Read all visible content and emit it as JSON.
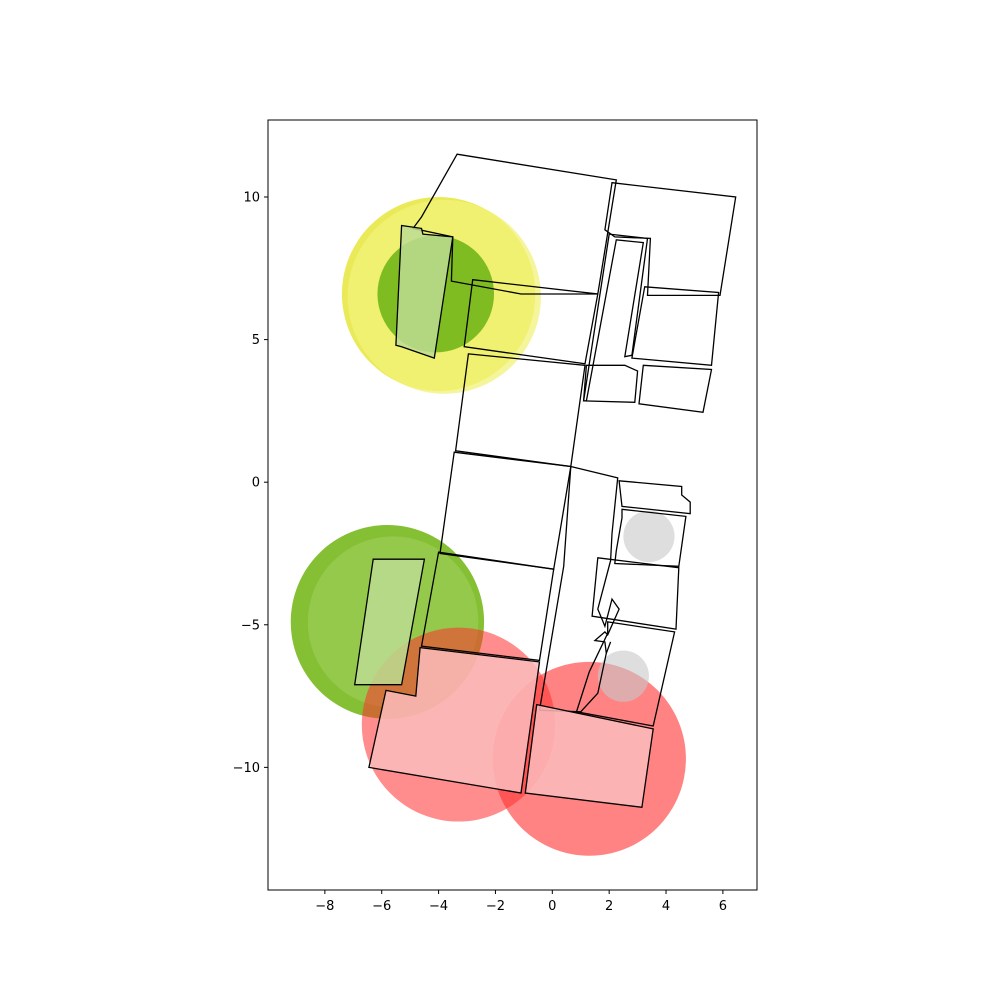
{
  "chart_data": {
    "type": "scatter",
    "title": "",
    "xlabel": "",
    "ylabel": "",
    "xlim": [
      -10.0,
      7.2
    ],
    "ylim": [
      -14.3,
      12.7
    ],
    "x_ticks": [
      -8,
      -6,
      -4,
      -2,
      0,
      2,
      4,
      6
    ],
    "y_ticks": [
      10,
      5,
      0,
      -5,
      -10
    ],
    "x_tick_labels": [
      "−8",
      "−6",
      "−4",
      "−2",
      "0",
      "2",
      "4",
      "6"
    ],
    "y_tick_labels": [
      "10",
      "5",
      "0",
      "−5",
      "−10"
    ],
    "grid": false,
    "legend": "none",
    "circles": [
      {
        "x": -4.0,
        "y": 6.6,
        "r": 3.4,
        "color": "#dede00",
        "opacity": 0.65
      },
      {
        "x": -3.8,
        "y": 6.5,
        "r": 3.4,
        "color": "#f2f27a",
        "opacity": 0.75
      },
      {
        "x": -4.1,
        "y": 6.6,
        "r": 2.05,
        "color": "#78b81e",
        "opacity": 0.95
      },
      {
        "x": -5.8,
        "y": -4.9,
        "r": 3.4,
        "color": "#78b81e",
        "opacity": 0.9
      },
      {
        "x": -5.6,
        "y": -4.9,
        "r": 3.0,
        "color": "#a8d468",
        "opacity": 0.45
      },
      {
        "x": -3.3,
        "y": -8.5,
        "r": 3.4,
        "color": "#ff3030",
        "opacity": 0.55
      },
      {
        "x": 1.3,
        "y": -9.7,
        "r": 3.4,
        "color": "#ff3030",
        "opacity": 0.6
      },
      {
        "x": 3.4,
        "y": -1.9,
        "r": 0.9,
        "color": "#c8c8c8",
        "opacity": 0.6
      },
      {
        "x": 2.5,
        "y": -6.8,
        "r": 0.9,
        "color": "#c8c8c8",
        "opacity": 0.6
      }
    ],
    "rooms": [
      {
        "fill": "none",
        "points": [
          [
            -3.35,
            11.5
          ],
          [
            2.25,
            10.6
          ],
          [
            1.6,
            6.6
          ],
          [
            -1.1,
            6.6
          ],
          [
            -3.55,
            7.05
          ],
          [
            -3.5,
            8.6
          ],
          [
            -4.9,
            8.9
          ],
          [
            -4.6,
            9.3
          ]
        ]
      },
      {
        "fill": "none",
        "points": [
          [
            2.1,
            10.5
          ],
          [
            6.45,
            10.0
          ],
          [
            5.9,
            6.55
          ],
          [
            3.35,
            6.55
          ],
          [
            3.45,
            8.55
          ],
          [
            2.2,
            8.6
          ],
          [
            1.85,
            8.85
          ]
        ]
      },
      {
        "fill": "#bcdc92",
        "points": [
          [
            -5.3,
            9.0
          ],
          [
            -4.6,
            8.9
          ],
          [
            -4.55,
            8.7
          ],
          [
            -3.5,
            8.6
          ],
          [
            -4.15,
            4.35
          ],
          [
            -5.3,
            4.75
          ],
          [
            -5.5,
            4.8
          ]
        ]
      },
      {
        "fill": "none",
        "points": [
          [
            -2.8,
            7.1
          ],
          [
            1.6,
            6.6
          ],
          [
            1.15,
            4.15
          ],
          [
            -3.1,
            4.75
          ]
        ]
      },
      {
        "fill": "none",
        "points": [
          [
            -2.95,
            4.5
          ],
          [
            1.15,
            4.1
          ],
          [
            0.65,
            0.55
          ],
          [
            -3.4,
            1.1
          ]
        ]
      },
      {
        "fill": "none",
        "points": [
          [
            2.0,
            8.7
          ],
          [
            3.35,
            8.55
          ],
          [
            2.8,
            4.45
          ],
          [
            2.55,
            4.4
          ],
          [
            3.2,
            8.4
          ],
          [
            2.25,
            8.5
          ],
          [
            1.2,
            2.85
          ],
          [
            1.1,
            2.85
          ],
          [
            2.0,
            8.7
          ]
        ]
      },
      {
        "fill": "none",
        "points": [
          [
            3.25,
            6.85
          ],
          [
            5.85,
            6.65
          ],
          [
            5.6,
            4.1
          ],
          [
            2.8,
            4.35
          ]
        ]
      },
      {
        "fill": "none",
        "points": [
          [
            3.2,
            4.1
          ],
          [
            5.6,
            3.95
          ],
          [
            5.3,
            2.45
          ],
          [
            3.05,
            2.75
          ]
        ]
      },
      {
        "fill": "none",
        "points": [
          [
            1.1,
            2.85
          ],
          [
            2.9,
            2.8
          ],
          [
            3.0,
            3.9
          ],
          [
            2.55,
            4.1
          ],
          [
            1.2,
            4.1
          ]
        ]
      },
      {
        "fill": "none",
        "points": [
          [
            -3.45,
            1.05
          ],
          [
            0.65,
            0.55
          ],
          [
            0.05,
            -3.05
          ],
          [
            -3.95,
            -2.5
          ]
        ]
      },
      {
        "fill": "#bcdc92",
        "points": [
          [
            -6.3,
            -2.7
          ],
          [
            -4.5,
            -2.7
          ],
          [
            -5.3,
            -7.1
          ],
          [
            -6.95,
            -7.1
          ]
        ]
      },
      {
        "fill": "none",
        "points": [
          [
            -4.0,
            -2.45
          ],
          [
            0.05,
            -3.05
          ],
          [
            -0.45,
            -6.25
          ],
          [
            -4.6,
            -5.75
          ]
        ]
      },
      {
        "fill": "none",
        "points": [
          [
            0.65,
            0.55
          ],
          [
            2.3,
            0.15
          ],
          [
            2.1,
            -1.8
          ],
          [
            2.05,
            -2.75
          ],
          [
            1.6,
            -4.45
          ],
          [
            1.85,
            -5.05
          ],
          [
            2.1,
            -4.1
          ],
          [
            2.35,
            -4.45
          ],
          [
            1.95,
            -5.35
          ],
          [
            1.85,
            -5.25
          ],
          [
            1.5,
            -5.55
          ],
          [
            1.85,
            -5.6
          ],
          [
            1.9,
            -6.0
          ],
          [
            2.05,
            -5.6
          ],
          [
            1.9,
            -6.0
          ],
          [
            1.6,
            -7.4
          ],
          [
            1.0,
            -8.05
          ],
          [
            -0.45,
            -8.0
          ],
          [
            0.4,
            -2.95
          ]
        ]
      },
      {
        "fill": "none",
        "points": [
          [
            2.35,
            0.05
          ],
          [
            4.55,
            -0.15
          ],
          [
            4.55,
            -0.45
          ],
          [
            4.85,
            -0.7
          ],
          [
            4.85,
            -1.1
          ],
          [
            2.45,
            -0.85
          ]
        ]
      },
      {
        "fill": "none",
        "points": [
          [
            2.45,
            -0.95
          ],
          [
            4.7,
            -1.2
          ],
          [
            4.45,
            -2.95
          ],
          [
            2.2,
            -2.85
          ],
          [
            2.25,
            -2.4
          ],
          [
            2.45,
            -1.25
          ]
        ]
      },
      {
        "fill": "none",
        "points": [
          [
            1.6,
            -2.65
          ],
          [
            4.45,
            -3.0
          ],
          [
            4.35,
            -5.15
          ],
          [
            1.4,
            -4.7
          ]
        ]
      },
      {
        "fill": "none",
        "points": [
          [
            1.95,
            -4.9
          ],
          [
            4.3,
            -5.25
          ],
          [
            3.55,
            -8.55
          ],
          [
            0.85,
            -8.05
          ],
          [
            1.3,
            -6.65
          ],
          [
            1.95,
            -5.3
          ]
        ]
      },
      {
        "fill": "#fbbcbc",
        "points": [
          [
            -4.65,
            -5.8
          ],
          [
            -0.45,
            -6.3
          ],
          [
            -1.1,
            -10.9
          ],
          [
            -6.45,
            -10.0
          ],
          [
            -5.85,
            -7.3
          ],
          [
            -4.8,
            -7.5
          ]
        ]
      },
      {
        "fill": "#fbbcbc",
        "points": [
          [
            -0.55,
            -7.8
          ],
          [
            3.55,
            -8.65
          ],
          [
            3.15,
            -11.4
          ],
          [
            -0.95,
            -10.9
          ]
        ]
      }
    ]
  }
}
